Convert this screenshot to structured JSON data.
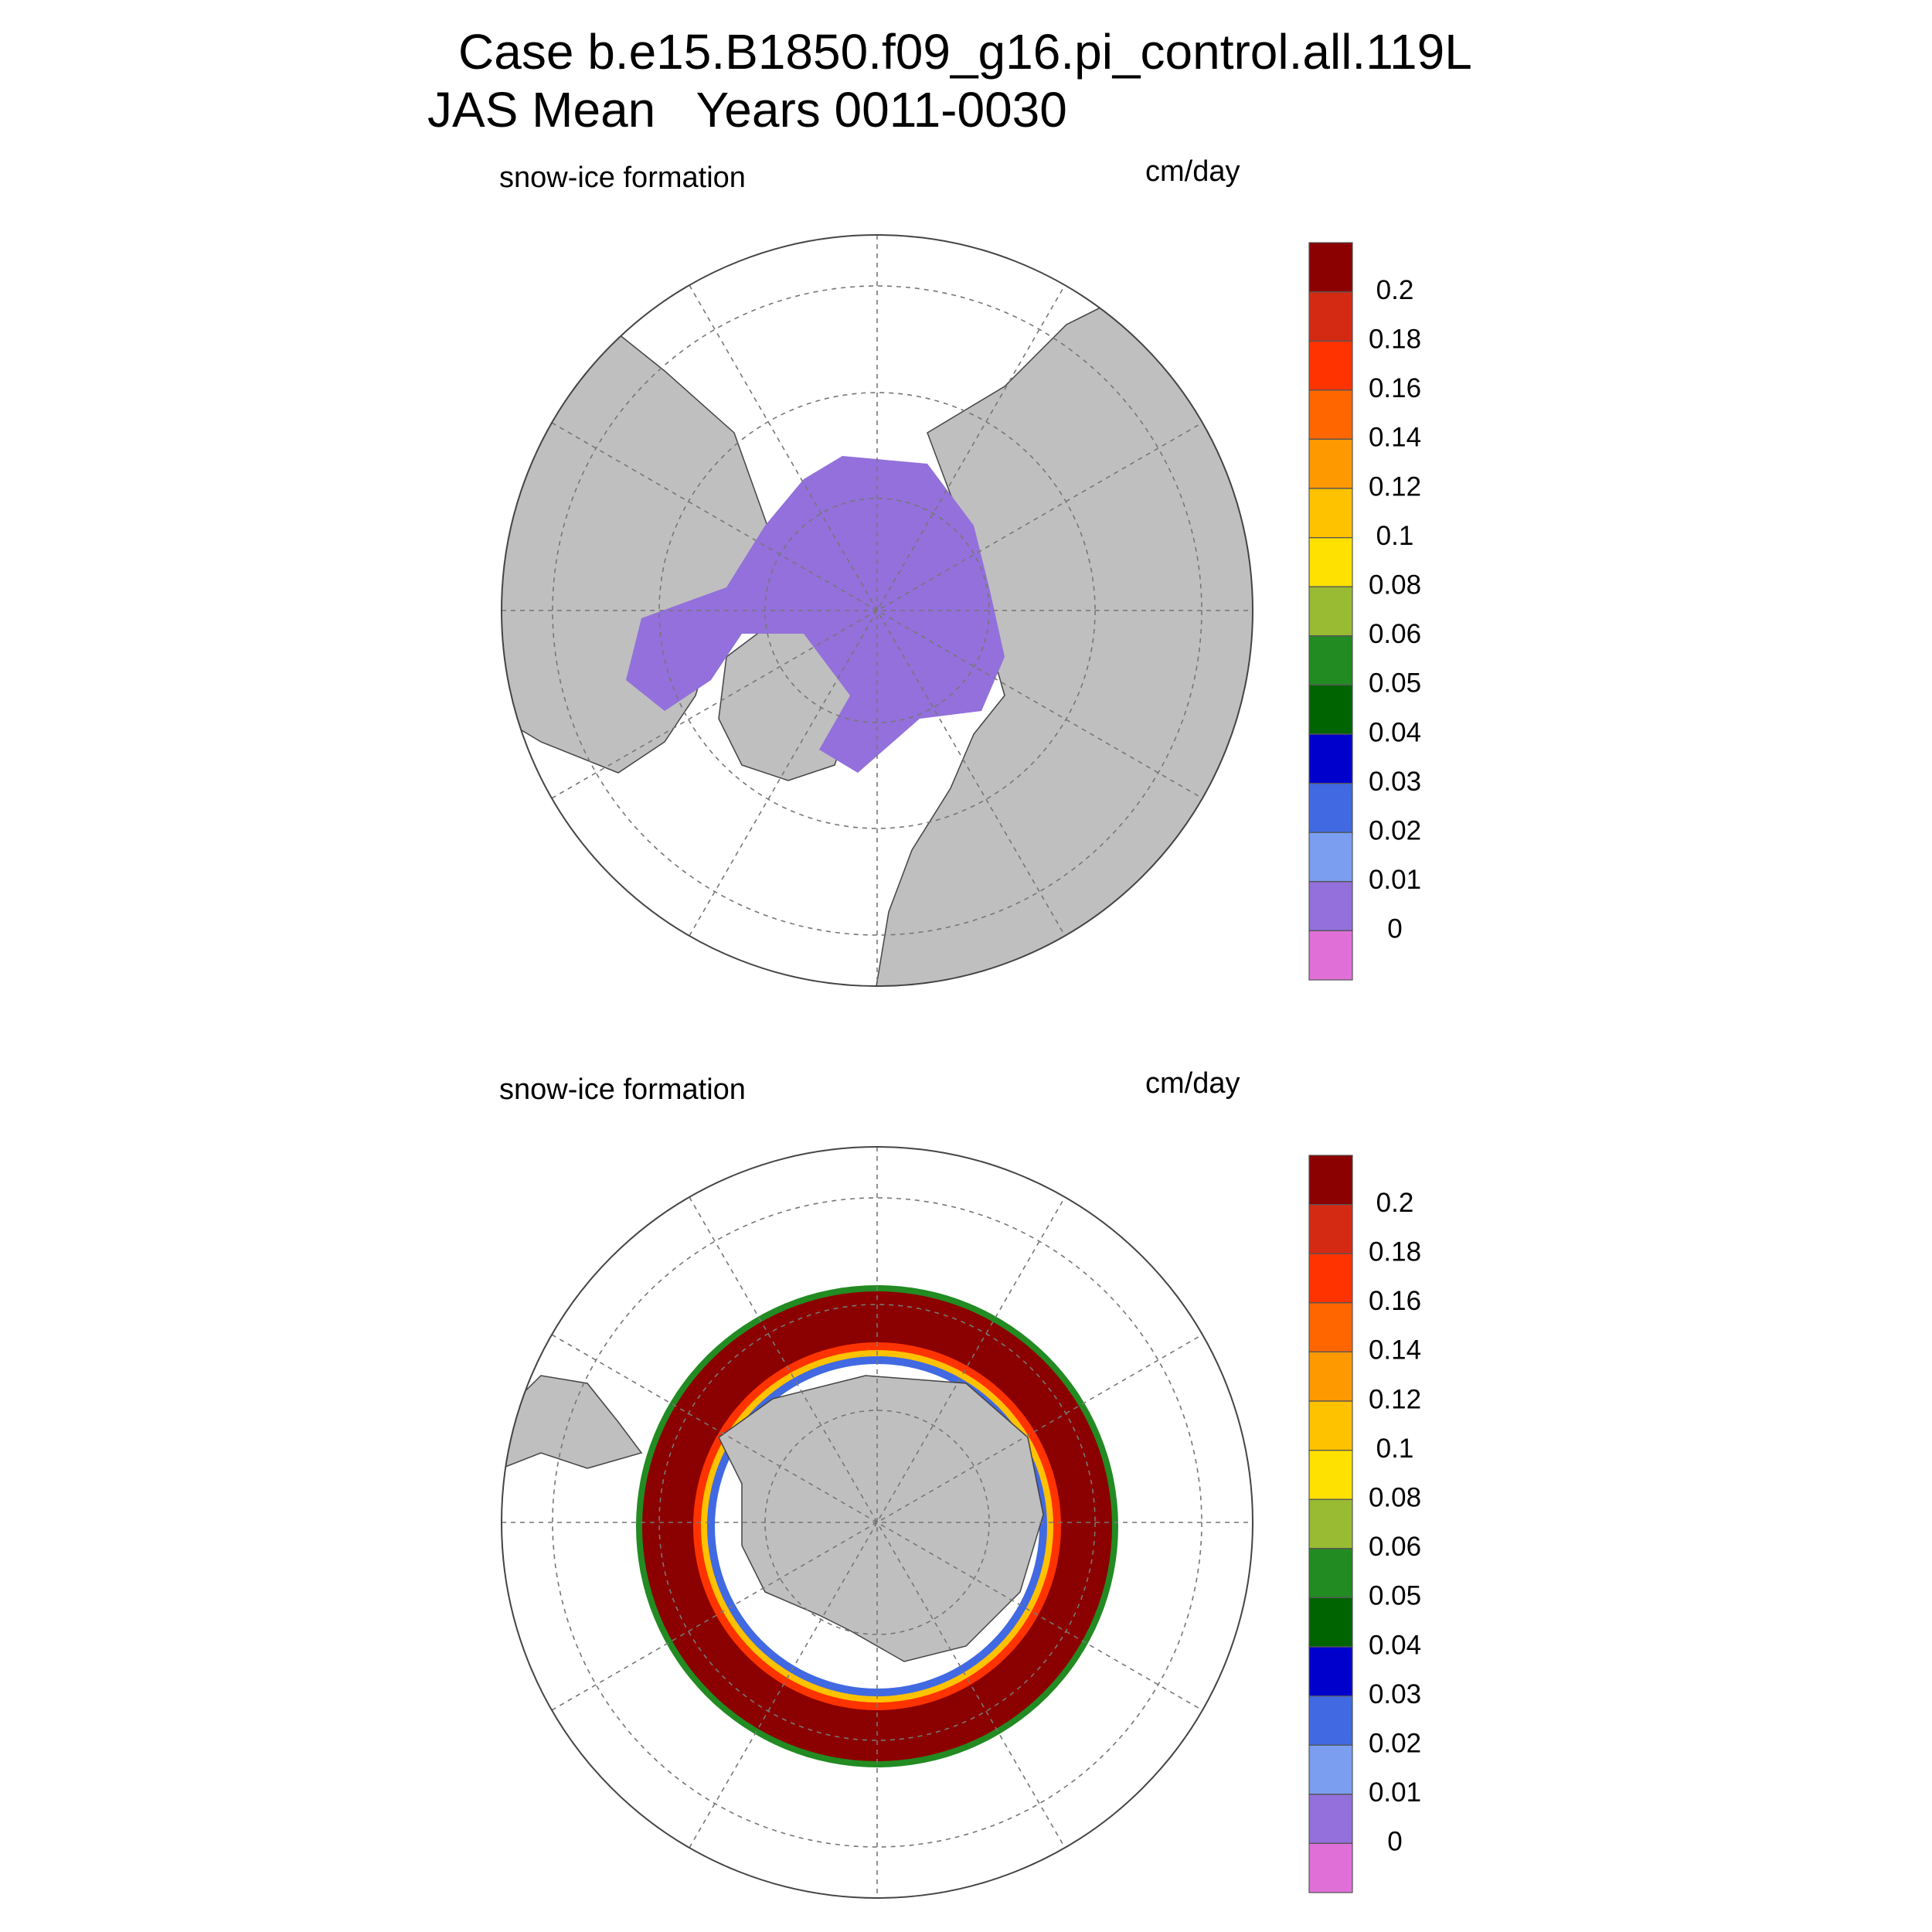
{
  "title": [
    "Case b.e15.B1850.f09_g16.pi_control.all.119L",
    "JAS Mean   Years 0011-0030"
  ],
  "panels": [
    {
      "label": "snow-ice formation",
      "units": "cm/day",
      "colorbar": {
        "levels": [
          0.2,
          0.18,
          0.16,
          0.14,
          0.12,
          0.1,
          0.08,
          0.06,
          0.05,
          0.04,
          0.03,
          0.02,
          0.01,
          0
        ],
        "colors": [
          "#8b0000",
          "#d42a14",
          "#ff3300",
          "#ff6600",
          "#ff9900",
          "#ffc200",
          "#ffe100",
          "#99bb33",
          "#228b22",
          "#006400",
          "#0000cd",
          "#4169e1",
          "#7b9ef0",
          "#9370db",
          "#e070d8"
        ]
      }
    },
    {
      "label": "snow-ice formation",
      "units": "cm/day",
      "colorbar": {
        "levels": [
          0.2,
          0.18,
          0.16,
          0.14,
          0.12,
          0.1,
          0.08,
          0.06,
          0.05,
          0.04,
          0.03,
          0.02,
          0.01,
          0
        ],
        "colors": [
          "#8b0000",
          "#d42a14",
          "#ff3300",
          "#ff6600",
          "#ff9900",
          "#ffc200",
          "#ffe100",
          "#99bb33",
          "#228b22",
          "#006400",
          "#0000cd",
          "#4169e1",
          "#7b9ef0",
          "#9370db",
          "#e070d8"
        ]
      }
    }
  ]
}
